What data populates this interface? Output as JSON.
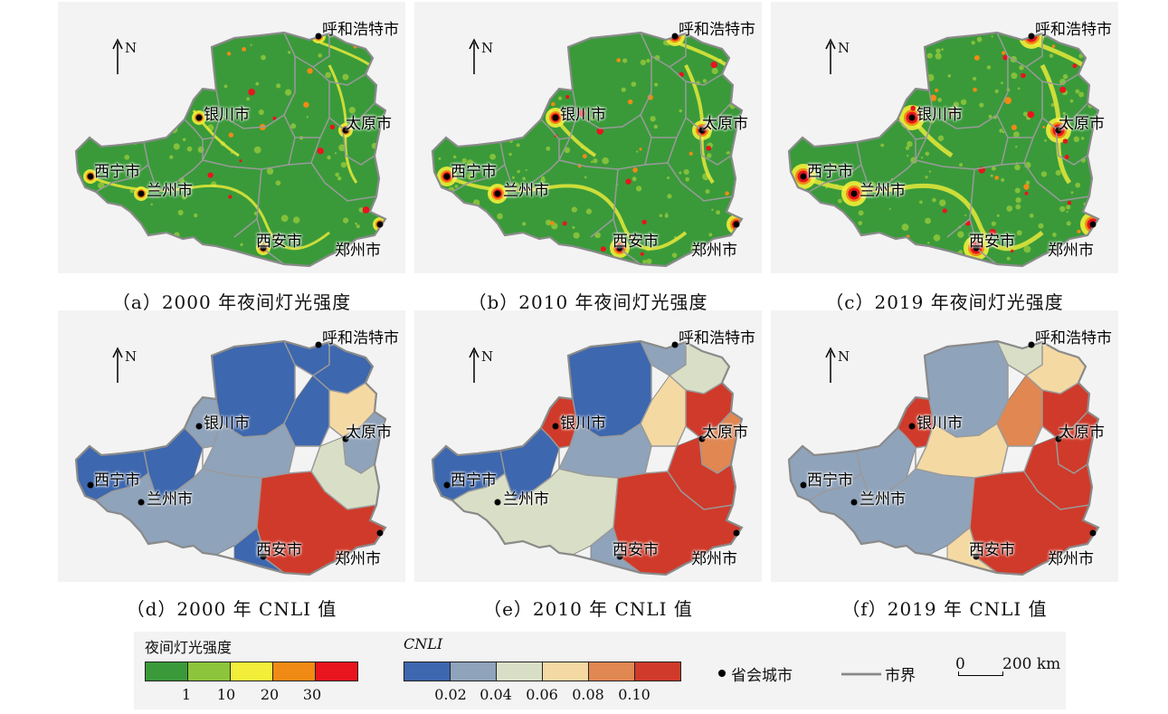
{
  "panels": [
    {
      "id": "a",
      "caption": "（a）2000 年夜间灯光强度",
      "type": "ntl",
      "intensity": 1
    },
    {
      "id": "b",
      "caption": "（b）2010 年夜间灯光强度",
      "type": "ntl",
      "intensity": 2
    },
    {
      "id": "c",
      "caption": "（c）2019 年夜间灯光强度",
      "type": "ntl",
      "intensity": 3
    },
    {
      "id": "d",
      "caption": "（d）2000 年 CNLI 值",
      "type": "cnli",
      "year": "2000"
    },
    {
      "id": "e",
      "caption": "（e）2010 年 CNLI 值",
      "type": "cnli",
      "year": "2010"
    },
    {
      "id": "f",
      "caption": "（f）2019 年 CNLI 值",
      "type": "cnli",
      "year": "2019"
    }
  ],
  "cities": {
    "hohhot": "呼和浩特市",
    "yinchuan": "银川市",
    "taiyuan": "太原市",
    "xining": "西宁市",
    "lanzhou": "兰州市",
    "xian": "西安市",
    "zhengzhou": "郑州市"
  },
  "north_label": "N",
  "legend": {
    "ntl": {
      "title": "夜间灯光强度",
      "colors": [
        "#3a9a3a",
        "#8cc43c",
        "#f2ee3a",
        "#f08a14",
        "#e8141e"
      ],
      "ticks": [
        "1",
        "10",
        "20",
        "30"
      ]
    },
    "cnli": {
      "title": "CNLI",
      "colors": [
        "#3d67ae",
        "#8fa3bb",
        "#d8dfc6",
        "#f4d9a3",
        "#e08752",
        "#d03a2a"
      ],
      "ticks": [
        "0.02",
        "0.04",
        "0.06",
        "0.08",
        "0.10"
      ]
    },
    "capital": "省会城市",
    "boundary": "市界",
    "scale": {
      "zero": "0",
      "distance": "200 km"
    }
  },
  "cnli_region_colors": {
    "2000": [
      "#3d67ae",
      "#8fa3bb",
      "#3d67ae",
      "#3d67ae",
      "#3d67ae",
      "#f4d9a3",
      "#3d67ae",
      "#3d67ae",
      "#8fa3bb",
      "#8fa3bb",
      "#d8dfc6",
      "#d03a2a",
      "#8fa3bb",
      "#3d67ae"
    ],
    "2010": [
      "#3d67ae",
      "#d03a2a",
      "#3d67ae",
      "#8fa3bb",
      "#d8dfc6",
      "#d03a2a",
      "#f4d9a3",
      "#3d67ae",
      "#8fa3bb",
      "#e08752",
      "#d03a2a",
      "#d03a2a",
      "#d8dfc6",
      "#8fa3bb"
    ],
    "2019": [
      "#8fa3bb",
      "#d03a2a",
      "#8fa3bb",
      "#d8dfc6",
      "#f4d9a3",
      "#d03a2a",
      "#e08752",
      "#8fa3bb",
      "#f4d9a3",
      "#d03a2a",
      "#d03a2a",
      "#d03a2a",
      "#8fa3bb",
      "#f4d9a3"
    ]
  }
}
